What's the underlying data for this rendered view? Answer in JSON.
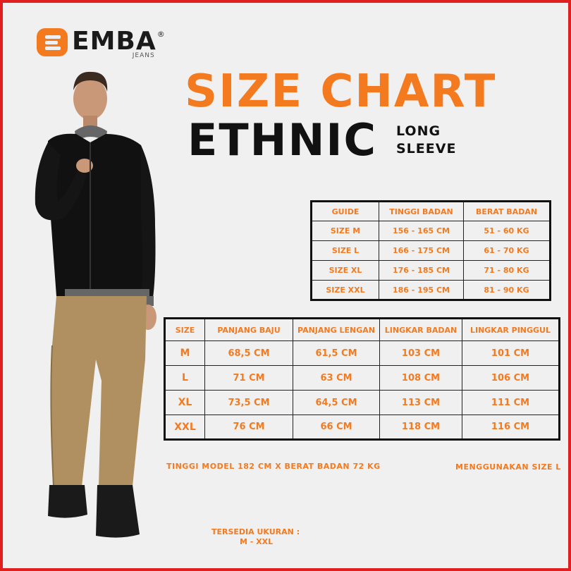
{
  "brand": {
    "name": "EMBA",
    "reg": "®",
    "sub": "JEANS"
  },
  "title": {
    "main": "SIZE CHART",
    "sub": "ETHNIC",
    "side_line1": "LONG",
    "side_line2": "SLEEVE"
  },
  "guide_table": {
    "headers": [
      "GUIDE",
      "TINGGI BADAN",
      "BERAT BADAN"
    ],
    "rows": [
      [
        "SIZE M",
        "156 - 165 CM",
        "51 - 60 KG"
      ],
      [
        "SIZE L",
        "166 - 175 CM",
        "61 - 70 KG"
      ],
      [
        "SIZE XL",
        "176 - 185 CM",
        "71 - 80 KG"
      ],
      [
        "SIZE XXL",
        "186 - 195 CM",
        "81 - 90 KG"
      ]
    ]
  },
  "size_table": {
    "headers": [
      "SIZE",
      "PANJANG BAJU",
      "PANJANG LENGAN",
      "LINGKAR BADAN",
      "LINGKAR PINGGUL"
    ],
    "rows": [
      [
        "M",
        "68,5 CM",
        "61,5 CM",
        "103 CM",
        "101 CM"
      ],
      [
        "L",
        "71 CM",
        "63 CM",
        "108 CM",
        "106 CM"
      ],
      [
        "XL",
        "73,5 CM",
        "64,5 CM",
        "113 CM",
        "111 CM"
      ],
      [
        "XXL",
        "76 CM",
        "66 CM",
        "118 CM",
        "116 CM"
      ]
    ]
  },
  "notes": {
    "model": "TINGGI MODEL 182 CM X BERAT BADAN 72 KG",
    "size_used": "MENGGUNAKAN SIZE L",
    "available_line1": "TERSEDIA UKURAN :",
    "available_line2": "M - XXL"
  },
  "colors": {
    "accent": "#f47a20",
    "text": "#111111",
    "background": "#f0f0f0",
    "frame": "#e02020"
  }
}
